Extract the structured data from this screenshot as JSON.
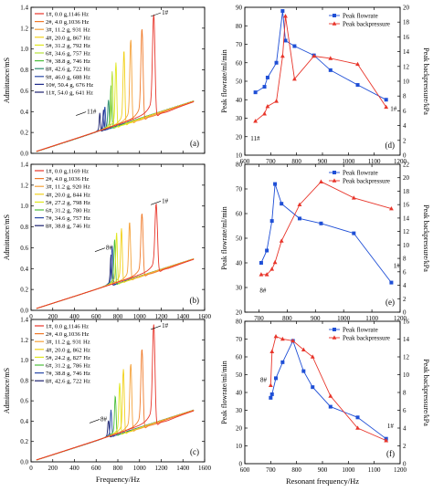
{
  "figure": {
    "left_col": {
      "xlabel": "Frequency/Hz",
      "ylabel": "Admittance/mS"
    },
    "right_col": {
      "xlabel": "Resonant frequency/Hz"
    }
  },
  "chart_data": [
    {
      "panel": "(a)",
      "type": "line",
      "xlabel": "",
      "ylabel": "Admittance/mS",
      "xlim": [
        0,
        1600
      ],
      "ylim": [
        0,
        1.4
      ],
      "xticks": [
        0,
        200,
        400,
        600,
        800,
        1000,
        1200,
        1400,
        1600
      ],
      "xtick_labels": [
        "",
        "",
        "",
        "",
        "",
        "",
        "",
        "",
        ""
      ],
      "yticks": [
        0,
        0.2,
        0.4,
        0.6,
        0.8,
        1.0,
        1.2,
        1.4
      ],
      "ytick_labels": [
        "0.0",
        "0.2",
        "0.4",
        "0.6",
        "0.8",
        "1.0",
        "1.2",
        "1.4"
      ],
      "x_range": [
        50,
        1500
      ],
      "baseline_slope": 0.000335,
      "annotations": [
        {
          "text": "1#",
          "x": 1205,
          "y": 1.33
        },
        {
          "text": "11#",
          "x": 515,
          "y": 0.38
        }
      ],
      "series": [
        {
          "name": "1#, 0.0 g,1146 Hz",
          "fr": 1146,
          "peak": 1.28,
          "color": "#e8352a"
        },
        {
          "name": "2#, 4.0 g,1036 Hz",
          "fr": 1036,
          "peak": 1.15,
          "color": "#f07a2a"
        },
        {
          "name": "3#, 11.2 g, 931 Hz",
          "fr": 931,
          "peak": 1.05,
          "color": "#f5a23a"
        },
        {
          "name": "4#, 20.0 g, 867 Hz",
          "fr": 867,
          "peak": 0.95,
          "color": "#f2d11c"
        },
        {
          "name": "5#, 31.2 g, 792 Hz",
          "fr": 792,
          "peak": 0.84,
          "color": "#e0e820"
        },
        {
          "name": "6#, 34.6 g, 757 Hz",
          "fr": 757,
          "peak": 0.76,
          "color": "#b8e23c"
        },
        {
          "name": "7#, 38.8 g, 746 Hz",
          "fr": 746,
          "peak": 0.63,
          "color": "#4cbf3c"
        },
        {
          "name": "8#, 42.6 g, 722 Hz",
          "fr": 722,
          "peak": 0.5,
          "color": "#2a8a6c"
        },
        {
          "name": "9#, 46.0 g, 688 Hz",
          "fr": 688,
          "peak": 0.44,
          "color": "#2a4aa8"
        },
        {
          "name": "10#, 50.4 g, 676 Hz",
          "fr": 676,
          "peak": 0.41,
          "color": "#1e2a8a"
        },
        {
          "name": "11#, 54.0 g, 641 Hz",
          "fr": 641,
          "peak": 0.38,
          "color": "#1a1f6e"
        }
      ]
    },
    {
      "panel": "(b)",
      "type": "line",
      "xlabel": "",
      "ylabel": "Admittance/mS",
      "xlim": [
        0,
        1600
      ],
      "ylim": [
        0,
        1.4
      ],
      "xticks": [
        0,
        200,
        400,
        600,
        800,
        1000,
        1200,
        1400,
        1600
      ],
      "xtick_labels": [
        "0",
        "200",
        "400",
        "600",
        "800",
        "1000",
        "1200",
        "1400",
        "1600"
      ],
      "yticks": [
        0,
        0.2,
        0.4,
        0.6,
        0.8,
        1.0,
        1.2,
        1.4
      ],
      "ytick_labels": [
        "0.0",
        "0.2",
        "0.4",
        "0.6",
        "0.8",
        "1.0",
        "1.2",
        "1.4"
      ],
      "x_range": [
        50,
        1500
      ],
      "baseline_slope": 0.00033,
      "annotations": [
        {
          "text": "1#",
          "x": 1205,
          "y": 1.03
        },
        {
          "text": "8#",
          "x": 690,
          "y": 0.58
        }
      ],
      "series": [
        {
          "name": "1#, 0.0 g,1169 Hz",
          "fr": 1169,
          "peak": 0.99,
          "color": "#e8352a"
        },
        {
          "name": "2#, 4.0 g,1036 Hz",
          "fr": 1036,
          "peak": 0.9,
          "color": "#f07a2a"
        },
        {
          "name": "3#, 11.2 g, 920 Hz",
          "fr": 920,
          "peak": 0.82,
          "color": "#f5a23a"
        },
        {
          "name": "4#, 20.0 g, 844 Hz",
          "fr": 844,
          "peak": 0.76,
          "color": "#f2d11c"
        },
        {
          "name": "5#, 27.2 g, 798 Hz",
          "fr": 798,
          "peak": 0.72,
          "color": "#e0e820"
        },
        {
          "name": "6#, 31.2 g, 780 Hz",
          "fr": 780,
          "peak": 0.66,
          "color": "#4cbf3c"
        },
        {
          "name": "7#, 34.6 g, 757 Hz",
          "fr": 757,
          "peak": 0.6,
          "color": "#2a4aa8"
        },
        {
          "name": "8#, 38.8 g, 746 Hz",
          "fr": 746,
          "peak": 0.52,
          "color": "#1a1f6e"
        }
      ]
    },
    {
      "panel": "(c)",
      "type": "line",
      "xlabel": "Frequency/Hz",
      "ylabel": "Admittance/mS",
      "xlim": [
        0,
        1600
      ],
      "ylim": [
        0,
        1.4
      ],
      "xticks": [
        0,
        200,
        400,
        600,
        800,
        1000,
        1200,
        1400,
        1600
      ],
      "xtick_labels": [
        "0",
        "200",
        "400",
        "600",
        "800",
        "1000",
        "1200",
        "1400",
        "1600"
      ],
      "yticks": [
        0,
        0.2,
        0.4,
        0.6,
        0.8,
        1.0,
        1.2,
        1.4
      ],
      "ytick_labels": [
        "0.0",
        "0.2",
        "0.4",
        "0.6",
        "0.8",
        "1.0",
        "1.2",
        "1.4"
      ],
      "x_range": [
        50,
        1500
      ],
      "baseline_slope": 0.00034,
      "annotations": [
        {
          "text": "1#",
          "x": 1205,
          "y": 1.32
        },
        {
          "text": "8#",
          "x": 640,
          "y": 0.4
        }
      ],
      "series": [
        {
          "name": "1#, 0.0 g,1146 Hz",
          "fr": 1146,
          "peak": 1.3,
          "color": "#e8352a"
        },
        {
          "name": "2#, 4.0 g,1036 Hz",
          "fr": 1036,
          "peak": 1.07,
          "color": "#f07a2a"
        },
        {
          "name": "3#, 11.2 g, 931 Hz",
          "fr": 931,
          "peak": 0.93,
          "color": "#f5a23a"
        },
        {
          "name": "4#, 20.0 g, 862 Hz",
          "fr": 862,
          "peak": 0.88,
          "color": "#f2d11c"
        },
        {
          "name": "5#, 24.2 g, 827 Hz",
          "fr": 827,
          "peak": 0.75,
          "color": "#e0e820"
        },
        {
          "name": "6#, 31.2 g, 786 Hz",
          "fr": 786,
          "peak": 0.63,
          "color": "#4cbf3c"
        },
        {
          "name": "7#, 38.8 g, 746 Hz",
          "fr": 746,
          "peak": 0.5,
          "color": "#2a4aa8"
        },
        {
          "name": "8#, 42.6 g, 722 Hz",
          "fr": 722,
          "peak": 0.4,
          "color": "#1a1f6e"
        }
      ]
    },
    {
      "panel": "(d)",
      "type": "line",
      "xlabel": "",
      "ylabel": "Peak flowrate/ml/min",
      "y2label": "Peak backpressure/kPa",
      "xlim": [
        600,
        1200
      ],
      "ylim": [
        10,
        90
      ],
      "y2lim": [
        0,
        20
      ],
      "xticks": [
        600,
        700,
        800,
        900,
        1000,
        1100,
        1200
      ],
      "xtick_labels": [
        "600",
        "700",
        "800",
        "900",
        "1000",
        "1100",
        "1200"
      ],
      "yticks": [
        10,
        20,
        30,
        40,
        50,
        60,
        70,
        80,
        90
      ],
      "y2ticks": [
        0,
        2,
        4,
        6,
        8,
        10,
        12,
        14,
        16,
        18,
        20
      ],
      "annotations": [
        {
          "text": "11#",
          "x": 622,
          "y": 18
        },
        {
          "text": "1#",
          "x": 1162,
          "y": 34
        }
      ],
      "series": [
        {
          "name": "Peak flowrate",
          "axis": "left",
          "marker": "square",
          "color": "#1f4fd6",
          "x": [
            641,
            676,
            688,
            722,
            746,
            757,
            792,
            867,
            931,
            1036,
            1146
          ],
          "y": [
            44,
            47,
            52,
            60,
            88,
            72,
            69,
            64,
            56,
            48,
            40
          ]
        },
        {
          "name": "Peak backpressure",
          "axis": "right",
          "marker": "triangle",
          "color": "#e8352a",
          "x": [
            641,
            676,
            688,
            722,
            746,
            757,
            792,
            867,
            931,
            1036,
            1146
          ],
          "y": [
            4.6,
            5.6,
            6.6,
            7.3,
            13.4,
            18.8,
            10.3,
            13.4,
            13.1,
            12.3,
            6.5
          ]
        }
      ]
    },
    {
      "panel": "(e)",
      "type": "line",
      "xlabel": "",
      "ylabel": "Peak flowrate/ml/min",
      "y2label": "Peak backpressure/kPa",
      "xlim": [
        650,
        1200
      ],
      "ylim": [
        20,
        80
      ],
      "y2lim": [
        0,
        22
      ],
      "xticks": [
        700,
        800,
        900,
        1000,
        1100,
        1200
      ],
      "xtick_labels": [
        "700",
        "800",
        "900",
        "1000",
        "1100",
        "1200"
      ],
      "yticks": [
        20,
        30,
        40,
        50,
        60,
        70,
        80
      ],
      "y2ticks": [
        0,
        2,
        4,
        6,
        8,
        10,
        12,
        14,
        16,
        18,
        20,
        22
      ],
      "annotations": [
        {
          "text": "8#",
          "x": 703,
          "y": 28
        },
        {
          "text": "1#",
          "x": 1176,
          "y": 38
        }
      ],
      "series": [
        {
          "name": "Peak flowrate",
          "axis": "left",
          "marker": "square",
          "color": "#1f4fd6",
          "x": [
            708,
            728,
            746,
            757,
            780,
            844,
            920,
            1036,
            1169
          ],
          "y": [
            40,
            45,
            57,
            72,
            64,
            58,
            56,
            52,
            32
          ]
        },
        {
          "name": "Peak backpressure",
          "axis": "right",
          "marker": "triangle",
          "color": "#e8352a",
          "x": [
            708,
            728,
            746,
            757,
            780,
            844,
            920,
            1036,
            1169
          ],
          "y": [
            5.6,
            5.6,
            6.4,
            7.4,
            10.6,
            16.0,
            19.4,
            17.0,
            15.4
          ]
        }
      ]
    },
    {
      "panel": "(f)",
      "type": "line",
      "xlabel": "Resonant frequency/Hz",
      "ylabel": "Peak flowrate/ml/min",
      "y2label": "Peak backpressure/kPa",
      "xlim": [
        600,
        1200
      ],
      "ylim": [
        0,
        80
      ],
      "y2lim": [
        0,
        16
      ],
      "xticks": [
        600,
        700,
        800,
        900,
        1000,
        1100,
        1200
      ],
      "xtick_labels": [
        "600",
        "700",
        "800",
        "900",
        "1000",
        "1100",
        "1200"
      ],
      "yticks": [
        0,
        10,
        20,
        30,
        40,
        50,
        60,
        70,
        80
      ],
      "y2ticks": [
        0,
        2,
        4,
        6,
        8,
        10,
        12,
        14,
        16
      ],
      "annotations": [
        {
          "text": "8#",
          "x": 660,
          "y": 46
        },
        {
          "text": "1#",
          "x": 1150,
          "y": 20
        }
      ],
      "series": [
        {
          "name": "Peak flowrate",
          "axis": "left",
          "marker": "square",
          "color": "#1f4fd6",
          "x": [
            700,
            705,
            720,
            746,
            786,
            827,
            862,
            931,
            1036,
            1146
          ],
          "y": [
            37,
            39,
            48,
            57,
            69,
            52,
            43,
            32,
            26,
            14
          ]
        },
        {
          "name": "Peak backpressure",
          "axis": "right",
          "marker": "triangle",
          "color": "#e8352a",
          "x": [
            700,
            705,
            720,
            746,
            786,
            827,
            862,
            931,
            1036,
            1146
          ],
          "y": [
            8.8,
            12.6,
            14.3,
            14.0,
            13.8,
            12.8,
            12.0,
            7.6,
            4.0,
            2.6
          ]
        }
      ]
    }
  ]
}
